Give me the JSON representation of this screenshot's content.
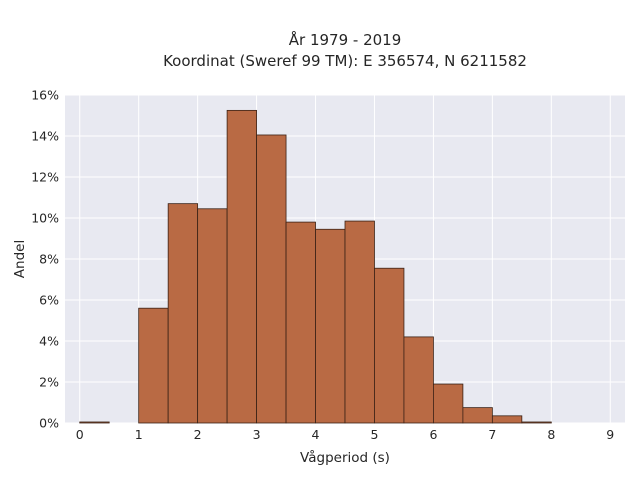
{
  "chart_data": {
    "type": "bar",
    "title_lines": [
      "År 1979 - 2019",
      "Koordinat (Sweref 99 TM): E 356574, N 6211582"
    ],
    "xlabel": "Vågperiod (s)",
    "ylabel": "Andel",
    "xlim": [
      -0.25,
      9.25
    ],
    "ylim": [
      0,
      16
    ],
    "xticks": [
      0,
      1,
      2,
      3,
      4,
      5,
      6,
      7,
      8,
      9
    ],
    "yticks": [
      0,
      2,
      4,
      6,
      8,
      10,
      12,
      14,
      16
    ],
    "ytick_suffix": "%",
    "bin_width": 0.5,
    "bins": [
      {
        "x0": 0.0,
        "value": 0.05
      },
      {
        "x0": 0.5,
        "value": 0.0
      },
      {
        "x0": 1.0,
        "value": 5.6
      },
      {
        "x0": 1.5,
        "value": 10.7
      },
      {
        "x0": 2.0,
        "value": 10.45
      },
      {
        "x0": 2.5,
        "value": 15.25
      },
      {
        "x0": 3.0,
        "value": 14.05
      },
      {
        "x0": 3.5,
        "value": 9.8
      },
      {
        "x0": 4.0,
        "value": 9.45
      },
      {
        "x0": 4.5,
        "value": 9.85
      },
      {
        "x0": 5.0,
        "value": 7.55
      },
      {
        "x0": 5.5,
        "value": 4.2
      },
      {
        "x0": 6.0,
        "value": 1.9
      },
      {
        "x0": 6.5,
        "value": 0.75
      },
      {
        "x0": 7.0,
        "value": 0.35
      },
      {
        "x0": 7.5,
        "value": 0.05
      }
    ],
    "grid": true,
    "bar_color": "#b96a44",
    "bar_edge_color": "#3b2216",
    "plot_bg_color": "#e8e9f1",
    "grid_color": "#ffffff"
  }
}
